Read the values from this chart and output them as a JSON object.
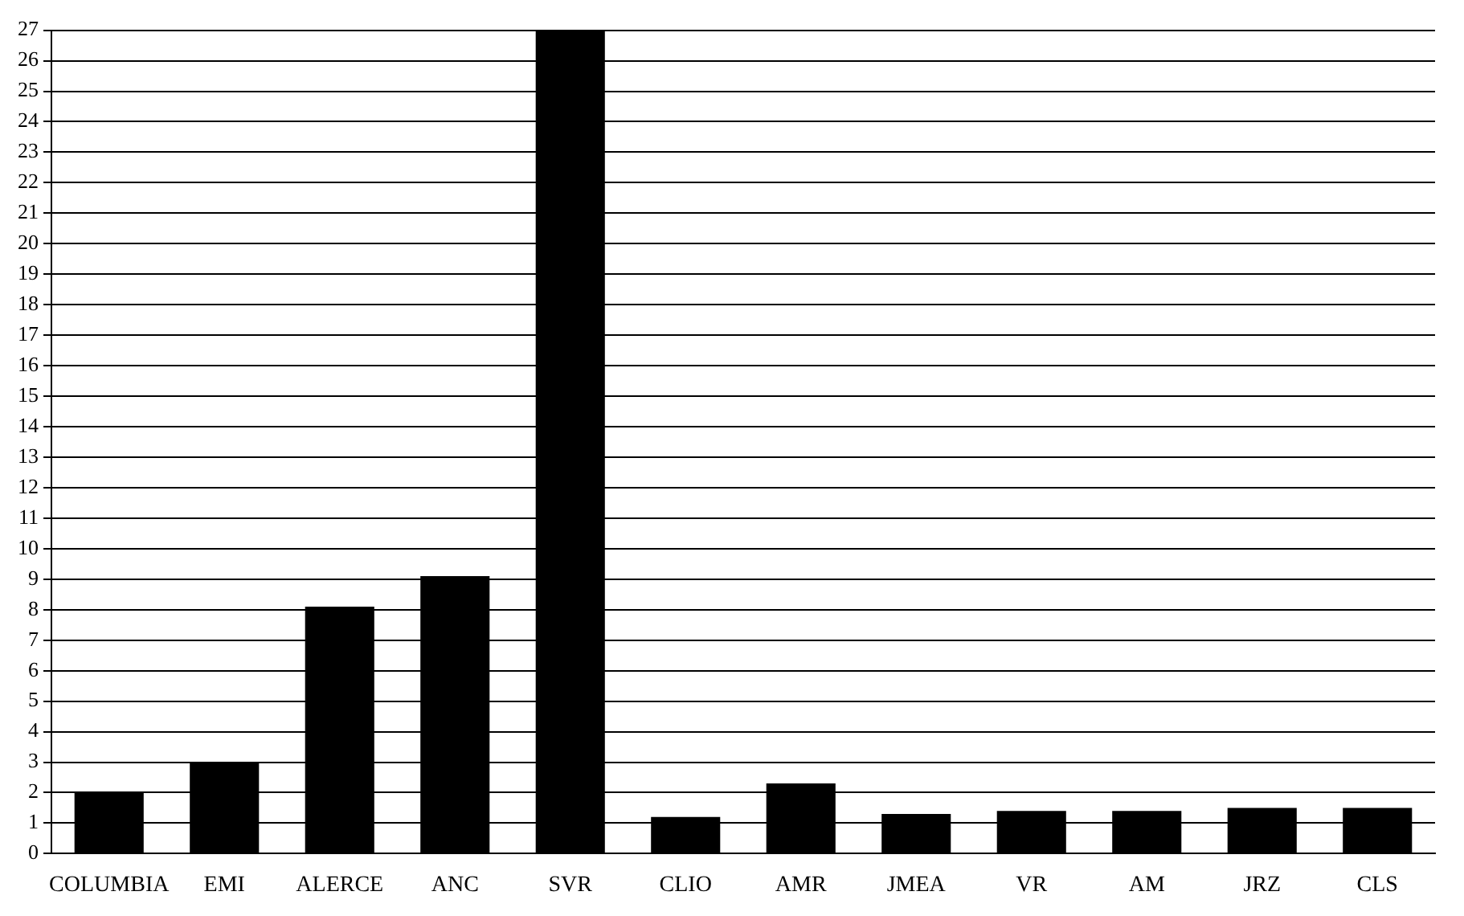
{
  "chart_data": {
    "type": "bar",
    "categories": [
      "COLUMBIA",
      "EMI",
      "ALERCE",
      "ANC",
      "SVR",
      "CLIO",
      "AMR",
      "JMEA",
      "VR",
      "AM",
      "JRZ",
      "CLS"
    ],
    "values": [
      2,
      3,
      8.1,
      9.1,
      27,
      1.2,
      2.3,
      1.3,
      1.4,
      1.4,
      1.5,
      1.5
    ],
    "color": "#000000",
    "ylim": [
      0,
      27
    ],
    "yticks": [
      0,
      1,
      2,
      3,
      4,
      5,
      6,
      7,
      8,
      9,
      10,
      11,
      12,
      13,
      14,
      15,
      16,
      17,
      18,
      19,
      20,
      21,
      22,
      23,
      24,
      25,
      26,
      27
    ],
    "grid": "y",
    "legend": false
  }
}
